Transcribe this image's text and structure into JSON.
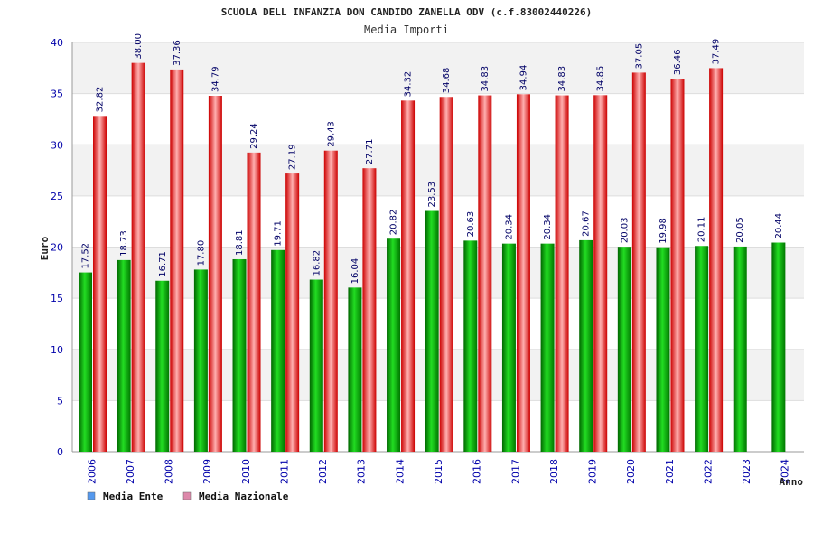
{
  "chart_data": {
    "type": "bar",
    "title": "SCUOLA DELL INFANZIA DON CANDIDO ZANELLA ODV (c.f.83002440226)",
    "subtitle": "Media Importi",
    "xlabel": "Anno",
    "ylabel": "Euro",
    "ylim": [
      0,
      40
    ],
    "yticks": [
      0,
      5,
      10,
      15,
      20,
      25,
      30,
      35,
      40
    ],
    "grid": true,
    "legend_position": "bottom-left",
    "categories": [
      "2006",
      "2007",
      "2008",
      "2009",
      "2010",
      "2011",
      "2012",
      "2013",
      "2014",
      "2015",
      "2016",
      "2017",
      "2018",
      "2019",
      "2020",
      "2021",
      "2022",
      "2023",
      "2024"
    ],
    "series": [
      {
        "name": "Media Ente",
        "color": "#00aa00",
        "legend_color": "#5599ee",
        "values": [
          17.52,
          18.73,
          16.71,
          17.8,
          18.81,
          19.71,
          16.82,
          16.04,
          20.82,
          23.53,
          20.63,
          20.34,
          20.34,
          20.67,
          20.03,
          19.98,
          20.11,
          20.05,
          20.44
        ],
        "labels": [
          "17.52",
          "18.73",
          "16.71",
          "17.80",
          "18.81",
          "19.71",
          "16.82",
          "16.04",
          "20.82",
          "23.53",
          "20.63",
          "20.34",
          "20.34",
          "20.67",
          "20.03",
          "19.98",
          "20.11",
          "20.05",
          "20.44"
        ]
      },
      {
        "name": "Media Nazionale",
        "color": "#ee2222",
        "legend_color": "#dd88aa",
        "values": [
          32.82,
          38.0,
          37.36,
          34.79,
          29.24,
          27.19,
          29.43,
          27.71,
          34.32,
          34.68,
          34.83,
          34.94,
          34.83,
          34.85,
          37.05,
          36.46,
          37.49,
          null,
          null
        ],
        "labels": [
          "32.82",
          "38.00",
          "37.36",
          "34.79",
          "29.24",
          "27.19",
          "29.43",
          "27.71",
          "34.32",
          "34.68",
          "34.83",
          "34.94",
          "34.83",
          "34.85",
          "37.05",
          "36.46",
          "37.49",
          null,
          null
        ]
      }
    ]
  }
}
